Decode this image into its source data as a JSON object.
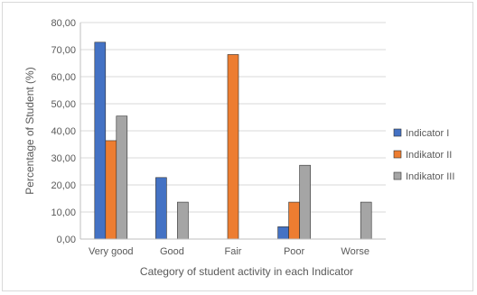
{
  "chart_data": {
    "type": "bar",
    "title": "",
    "xlabel": "Category of student activity in each Indicator",
    "ylabel": "Percentage of Student (%)",
    "categories": [
      "Very good",
      "Good",
      "Fair",
      "Poor",
      "Worse"
    ],
    "series": [
      {
        "name": "Indicator I",
        "color": "#4472c4",
        "values": [
          72.73,
          22.73,
          0,
          4.55,
          0
        ]
      },
      {
        "name": "Indikator II",
        "color": "#ed7d31",
        "values": [
          36.36,
          0,
          68.18,
          13.64,
          0
        ]
      },
      {
        "name": "Indikator III",
        "color": "#a5a5a5",
        "values": [
          45.45,
          13.64,
          0,
          27.27,
          13.64
        ]
      }
    ],
    "ylim": [
      0,
      80
    ],
    "yticks": [
      "0,00",
      "10,00",
      "20,00",
      "30,00",
      "40,00",
      "50,00",
      "60,00",
      "70,00",
      "80,00"
    ],
    "ytick_values": [
      0,
      10,
      20,
      30,
      40,
      50,
      60,
      70,
      80
    ],
    "grid": true,
    "legend_position": "right"
  }
}
